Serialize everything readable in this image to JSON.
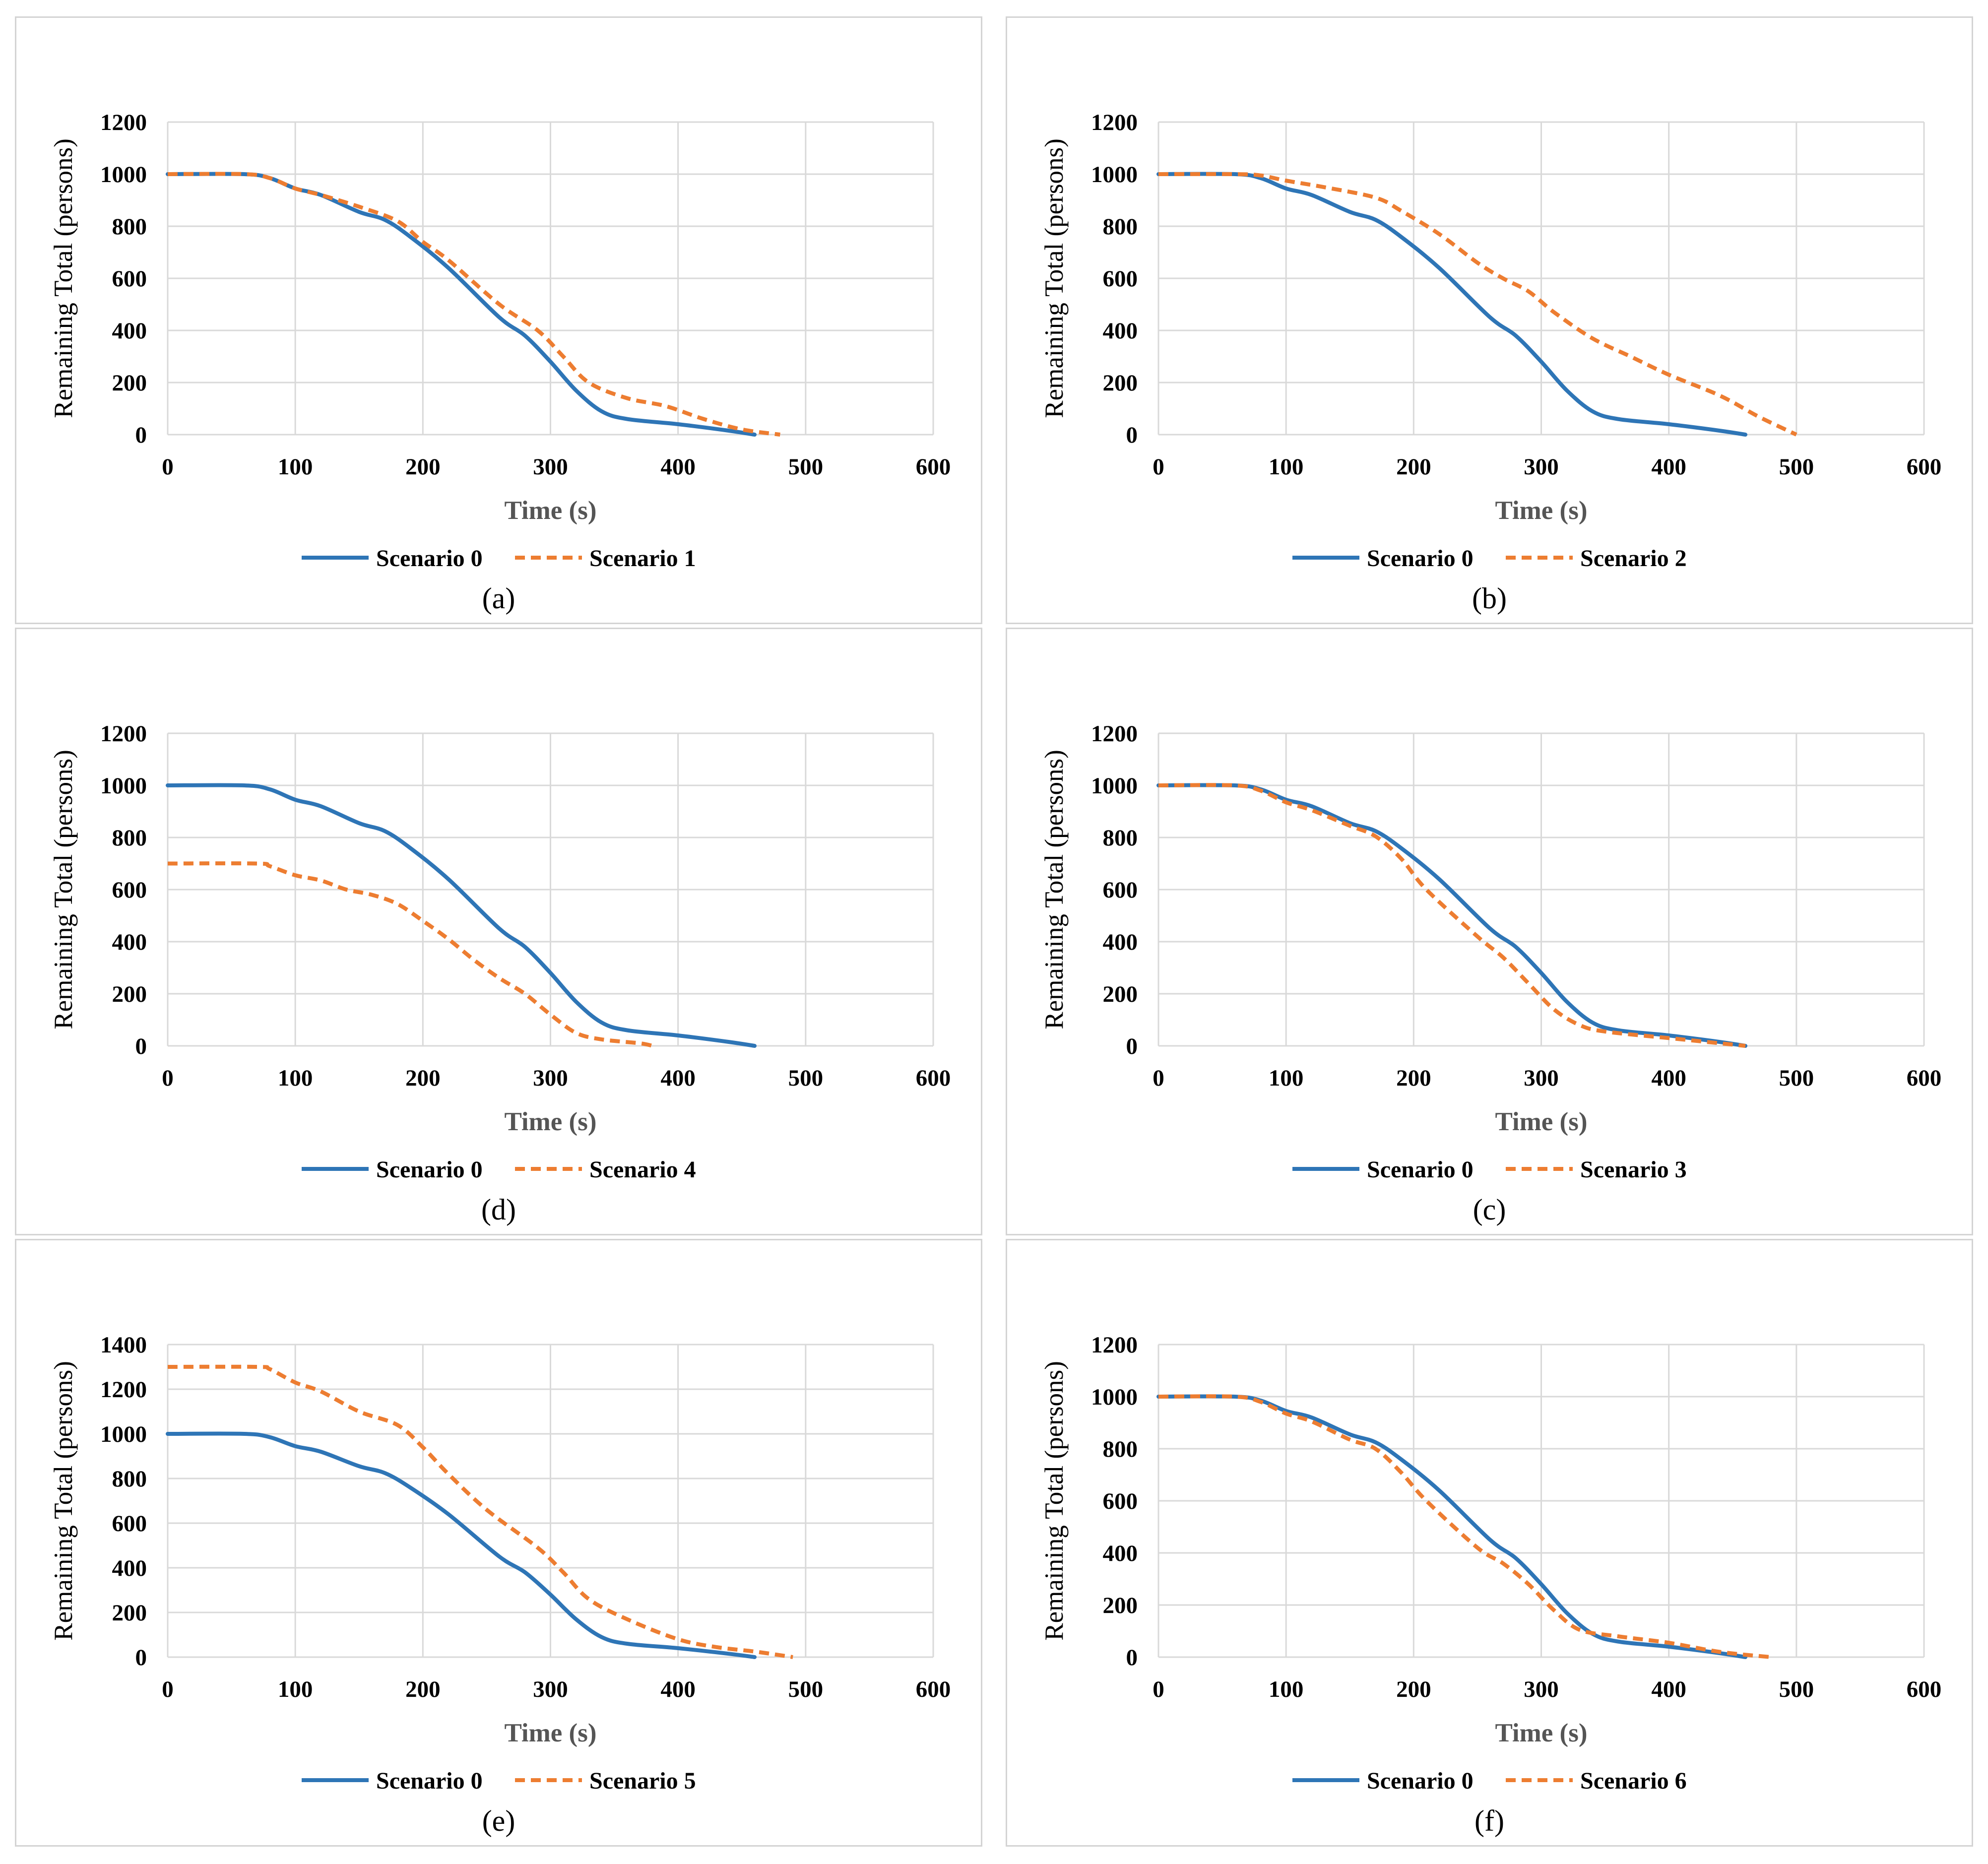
{
  "colors": {
    "scenario0": "#2e75b6",
    "scenario_alt": "#ed7d31",
    "grid": "#d9d9d9"
  },
  "chart_data": [
    {
      "type": "line",
      "caption": "(a)",
      "xlabel": "Time (s)",
      "ylabel": "Remaining Total (persons)",
      "xlim": [
        0,
        600
      ],
      "ylim": [
        0,
        1200
      ],
      "xticks": [
        0,
        100,
        200,
        300,
        400,
        500,
        600
      ],
      "yticks": [
        0,
        200,
        400,
        600,
        800,
        1000,
        1200
      ],
      "series": [
        {
          "name": "Scenario 0",
          "style": "solid",
          "x": [
            0,
            60,
            80,
            100,
            120,
            150,
            170,
            190,
            220,
            260,
            280,
            300,
            320,
            340,
            360,
            400,
            440,
            460
          ],
          "y": [
            1000,
            1000,
            985,
            945,
            920,
            855,
            825,
            760,
            640,
            450,
            380,
            280,
            170,
            90,
            60,
            40,
            15,
            0
          ]
        },
        {
          "name": "Scenario 1",
          "style": "dashed",
          "x": [
            0,
            60,
            80,
            100,
            120,
            150,
            180,
            200,
            220,
            260,
            290,
            310,
            330,
            360,
            390,
            420,
            450,
            480
          ],
          "y": [
            1000,
            1000,
            985,
            945,
            920,
            875,
            820,
            740,
            670,
            500,
            400,
            300,
            200,
            140,
            110,
            60,
            20,
            0
          ]
        }
      ]
    },
    {
      "type": "line",
      "caption": "(b)",
      "xlabel": "Time (s)",
      "ylabel": "Remaining Total (persons)",
      "xlim": [
        0,
        600
      ],
      "ylim": [
        0,
        1200
      ],
      "xticks": [
        0,
        100,
        200,
        300,
        400,
        500,
        600
      ],
      "yticks": [
        0,
        200,
        400,
        600,
        800,
        1000,
        1200
      ],
      "series": [
        {
          "name": "Scenario 0",
          "style": "solid",
          "x": [
            0,
            60,
            80,
            100,
            120,
            150,
            170,
            190,
            220,
            260,
            280,
            300,
            320,
            340,
            360,
            400,
            440,
            460
          ],
          "y": [
            1000,
            1000,
            985,
            945,
            920,
            855,
            825,
            760,
            640,
            450,
            380,
            280,
            170,
            90,
            60,
            40,
            15,
            0
          ]
        },
        {
          "name": "Scenario 2",
          "style": "dashed",
          "x": [
            0,
            60,
            80,
            100,
            130,
            170,
            190,
            220,
            250,
            270,
            290,
            310,
            340,
            370,
            400,
            440,
            470,
            500
          ],
          "y": [
            1000,
            1000,
            995,
            975,
            950,
            910,
            860,
            770,
            660,
            600,
            550,
            470,
            370,
            300,
            230,
            150,
            70,
            0
          ]
        }
      ]
    },
    {
      "type": "line",
      "caption": "(d)",
      "xlabel": "Time (s)",
      "ylabel": "Remaining Total (persons)",
      "xlim": [
        0,
        600
      ],
      "ylim": [
        0,
        1200
      ],
      "xticks": [
        0,
        100,
        200,
        300,
        400,
        500,
        600
      ],
      "yticks": [
        0,
        200,
        400,
        600,
        800,
        1000,
        1200
      ],
      "series": [
        {
          "name": "Scenario 0",
          "style": "solid",
          "x": [
            0,
            60,
            80,
            100,
            120,
            150,
            170,
            190,
            220,
            260,
            280,
            300,
            320,
            340,
            360,
            400,
            440,
            460
          ],
          "y": [
            1000,
            1000,
            985,
            945,
            920,
            855,
            825,
            760,
            640,
            450,
            380,
            280,
            170,
            90,
            60,
            40,
            15,
            0
          ]
        },
        {
          "name": "Scenario 4",
          "style": "dashed",
          "x": [
            0,
            70,
            80,
            100,
            120,
            140,
            160,
            180,
            200,
            220,
            240,
            260,
            280,
            300,
            320,
            340,
            370,
            380
          ],
          "y": [
            700,
            700,
            690,
            655,
            635,
            600,
            580,
            545,
            480,
            410,
            330,
            260,
            200,
            120,
            50,
            25,
            10,
            0
          ]
        }
      ]
    },
    {
      "type": "line",
      "caption": "(c)",
      "xlabel": "Time (s)",
      "ylabel": "Remaining Total (persons)",
      "xlim": [
        0,
        600
      ],
      "ylim": [
        0,
        1200
      ],
      "xticks": [
        0,
        100,
        200,
        300,
        400,
        500,
        600
      ],
      "yticks": [
        0,
        200,
        400,
        600,
        800,
        1000,
        1200
      ],
      "series": [
        {
          "name": "Scenario 0",
          "style": "solid",
          "x": [
            0,
            60,
            80,
            100,
            120,
            150,
            170,
            190,
            220,
            260,
            280,
            300,
            320,
            340,
            360,
            400,
            440,
            460
          ],
          "y": [
            1000,
            1000,
            985,
            945,
            920,
            855,
            825,
            760,
            640,
            450,
            380,
            280,
            170,
            90,
            60,
            40,
            15,
            0
          ]
        },
        {
          "name": "Scenario 3",
          "style": "dashed",
          "x": [
            0,
            60,
            80,
            100,
            120,
            150,
            170,
            190,
            210,
            250,
            270,
            290,
            310,
            330,
            350,
            400,
            440,
            460
          ],
          "y": [
            1000,
            1000,
            980,
            935,
            905,
            845,
            805,
            720,
            600,
            420,
            340,
            240,
            140,
            80,
            55,
            30,
            10,
            0
          ]
        }
      ]
    },
    {
      "type": "line",
      "caption": "(e)",
      "xlabel": "Time (s)",
      "ylabel": "Remaining Total (persons)",
      "xlim": [
        0,
        600
      ],
      "ylim": [
        0,
        1400
      ],
      "xticks": [
        0,
        100,
        200,
        300,
        400,
        500,
        600
      ],
      "yticks": [
        0,
        200,
        400,
        600,
        800,
        1000,
        1200,
        1400
      ],
      "series": [
        {
          "name": "Scenario 0",
          "style": "solid",
          "x": [
            0,
            60,
            80,
            100,
            120,
            150,
            170,
            190,
            220,
            260,
            280,
            300,
            320,
            340,
            360,
            400,
            440,
            460
          ],
          "y": [
            1000,
            1000,
            985,
            945,
            920,
            855,
            825,
            760,
            640,
            450,
            380,
            280,
            170,
            90,
            60,
            40,
            15,
            0
          ]
        },
        {
          "name": "Scenario 5",
          "style": "dashed",
          "x": [
            0,
            70,
            80,
            100,
            120,
            150,
            180,
            200,
            220,
            250,
            290,
            310,
            330,
            360,
            400,
            430,
            460,
            490
          ],
          "y": [
            1300,
            1300,
            1290,
            1230,
            1190,
            1100,
            1040,
            940,
            820,
            660,
            490,
            380,
            260,
            170,
            80,
            45,
            25,
            0
          ]
        }
      ]
    },
    {
      "type": "line",
      "caption": "(f)",
      "xlabel": "Time (s)",
      "ylabel": "Remaining Total (persons)",
      "xlim": [
        0,
        600
      ],
      "ylim": [
        0,
        1200
      ],
      "xticks": [
        0,
        100,
        200,
        300,
        400,
        500,
        600
      ],
      "yticks": [
        0,
        200,
        400,
        600,
        800,
        1000,
        1200
      ],
      "series": [
        {
          "name": "Scenario 0",
          "style": "solid",
          "x": [
            0,
            60,
            80,
            100,
            120,
            150,
            170,
            190,
            220,
            260,
            280,
            300,
            320,
            340,
            360,
            400,
            440,
            460
          ],
          "y": [
            1000,
            1000,
            985,
            945,
            920,
            855,
            825,
            760,
            640,
            450,
            380,
            280,
            170,
            90,
            60,
            40,
            15,
            0
          ]
        },
        {
          "name": "Scenario 6",
          "style": "dashed",
          "x": [
            0,
            60,
            80,
            100,
            120,
            150,
            170,
            190,
            210,
            250,
            270,
            290,
            310,
            330,
            360,
            400,
            440,
            480
          ],
          "y": [
            1000,
            1000,
            980,
            935,
            905,
            835,
            800,
            710,
            600,
            420,
            360,
            280,
            180,
            105,
            80,
            55,
            20,
            0
          ]
        }
      ]
    }
  ]
}
